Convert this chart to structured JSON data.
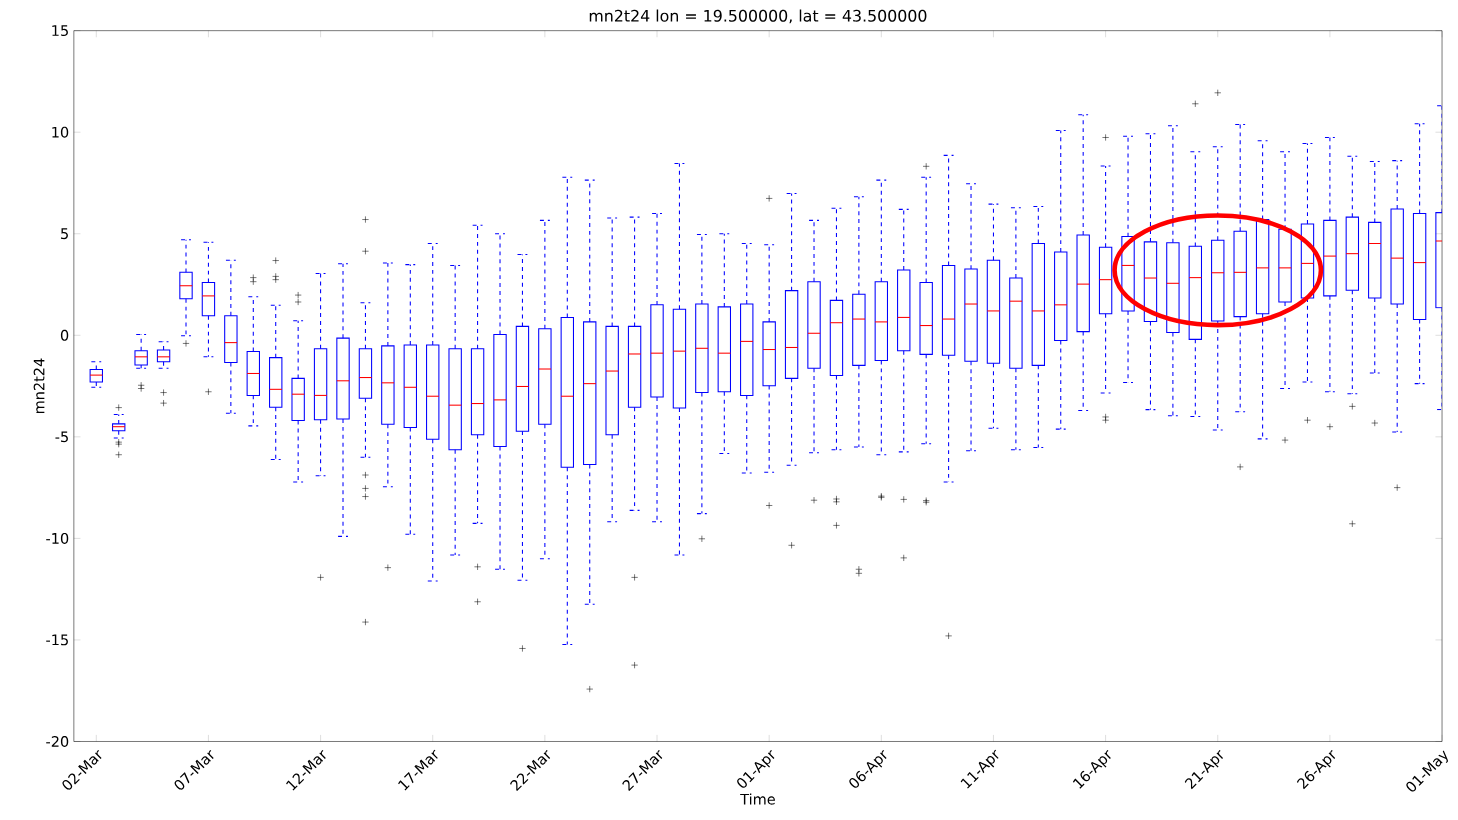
{
  "chart_data": {
    "type": "box",
    "title": "mn2t24 lon = 19.500000, lat = 43.500000",
    "xlabel": "Time",
    "ylabel": "mn2t24",
    "color": "#0000ff",
    "ylim": [
      -20,
      15
    ],
    "yticks": [
      -20,
      -15,
      -10,
      -5,
      0,
      5,
      10,
      15
    ],
    "categories": [
      "02-Mar",
      null,
      null,
      null,
      null,
      "07-Mar",
      null,
      null,
      null,
      null,
      "12-Mar",
      null,
      null,
      null,
      null,
      "17-Mar",
      null,
      null,
      null,
      null,
      "22-Mar",
      null,
      null,
      null,
      null,
      "27-Mar",
      null,
      null,
      null,
      null,
      "01-Apr",
      null,
      null,
      null,
      null,
      "06-Apr",
      null,
      null,
      null,
      null,
      "11-Apr",
      null,
      null,
      null,
      null,
      "16-Apr",
      null,
      null,
      null,
      null,
      "21-Apr",
      null,
      null,
      null,
      null,
      "26-Apr",
      null,
      null,
      null,
      null,
      "01-May"
    ],
    "boxes": [
      {
        "low": -2.56,
        "q1": -2.3,
        "median": -1.96,
        "q3": -1.68,
        "high": -1.3
      },
      {
        "low": -5.06,
        "q1": -4.7,
        "median": -4.5,
        "q3": -4.36,
        "high": -3.9,
        "outliers": [
          -3.56,
          -5.26,
          -5.36,
          -5.88
        ]
      },
      {
        "low": -1.62,
        "q1": -1.46,
        "median": -1.06,
        "q3": -0.76,
        "high": 0.04,
        "outliers": [
          -2.46,
          -2.62
        ]
      },
      {
        "low": -1.62,
        "q1": -1.3,
        "median": -1.06,
        "q3": -0.72,
        "high": -0.32,
        "outliers": [
          -2.82,
          -3.34
        ]
      },
      {
        "low": -0.02,
        "q1": 1.8,
        "median": 2.44,
        "q3": 3.1,
        "high": 4.7,
        "outliers": [
          -0.4
        ]
      },
      {
        "low": -1.06,
        "q1": 0.96,
        "median": 1.94,
        "q3": 2.6,
        "high": 4.58,
        "outliers": [
          -2.78
        ]
      },
      {
        "low": -3.84,
        "q1": -1.34,
        "median": -0.36,
        "q3": 0.96,
        "high": 3.7
      },
      {
        "low": -4.46,
        "q1": -2.96,
        "median": -1.88,
        "q3": -0.8,
        "high": 1.9,
        "outliers": [
          2.84,
          2.64
        ]
      },
      {
        "low": -6.12,
        "q1": -3.54,
        "median": -2.66,
        "q3": -1.1,
        "high": 1.48,
        "outliers": [
          3.68,
          2.9,
          2.74
        ]
      },
      {
        "low": -7.22,
        "q1": -4.2,
        "median": -2.9,
        "q3": -2.12,
        "high": 0.72,
        "outliers": [
          1.98,
          1.64
        ]
      },
      {
        "low": -6.92,
        "q1": -4.16,
        "median": -2.96,
        "q3": -0.66,
        "high": 3.04,
        "outliers": [
          -11.92
        ]
      },
      {
        "low": -9.9,
        "q1": -4.12,
        "median": -2.24,
        "q3": -0.14,
        "high": 3.52
      },
      {
        "low": -6.0,
        "q1": -3.1,
        "median": -2.08,
        "q3": -0.66,
        "high": 1.6,
        "outliers": [
          5.7,
          4.14,
          -6.88,
          -7.54,
          -7.94,
          -14.12
        ]
      },
      {
        "low": -7.46,
        "q1": -4.38,
        "median": -2.34,
        "q3": -0.52,
        "high": 3.56,
        "outliers": [
          -11.44
        ]
      },
      {
        "low": -9.8,
        "q1": -4.54,
        "median": -2.56,
        "q3": -0.48,
        "high": 3.48
      },
      {
        "low": -12.1,
        "q1": -5.12,
        "median": -3.0,
        "q3": -0.48,
        "high": 4.52
      },
      {
        "low": -10.82,
        "q1": -5.64,
        "median": -3.44,
        "q3": -0.66,
        "high": 3.44
      },
      {
        "low": -9.26,
        "q1": -4.9,
        "median": -3.36,
        "q3": -0.66,
        "high": 5.42,
        "outliers": [
          -11.4,
          -13.12
        ]
      },
      {
        "low": -11.52,
        "q1": -5.48,
        "median": -3.18,
        "q3": 0.04,
        "high": 5.0
      },
      {
        "low": -12.06,
        "q1": -4.72,
        "median": -2.52,
        "q3": 0.44,
        "high": 3.98,
        "outliers": [
          -15.42
        ]
      },
      {
        "low": -11.0,
        "q1": -4.38,
        "median": -1.66,
        "q3": 0.32,
        "high": 5.66
      },
      {
        "low": -15.22,
        "q1": -6.5,
        "median": -3.0,
        "q3": 0.88,
        "high": 7.78
      },
      {
        "low": -13.24,
        "q1": -6.36,
        "median": -2.38,
        "q3": 0.66,
        "high": 7.64,
        "outliers": [
          -17.42
        ]
      },
      {
        "low": -9.18,
        "q1": -4.9,
        "median": -1.76,
        "q3": 0.44,
        "high": 5.78
      },
      {
        "low": -8.62,
        "q1": -3.54,
        "median": -0.92,
        "q3": 0.44,
        "high": 5.82,
        "outliers": [
          -11.92,
          -16.24
        ]
      },
      {
        "low": -9.18,
        "q1": -3.04,
        "median": -0.88,
        "q3": 1.5,
        "high": 6.0
      },
      {
        "low": -10.82,
        "q1": -3.58,
        "median": -0.78,
        "q3": 1.28,
        "high": 8.46
      },
      {
        "low": -8.78,
        "q1": -2.82,
        "median": -0.64,
        "q3": 1.54,
        "high": 4.96,
        "outliers": [
          -10.02
        ]
      },
      {
        "low": -5.82,
        "q1": -2.78,
        "median": -0.88,
        "q3": 1.4,
        "high": 5.0
      },
      {
        "low": -6.78,
        "q1": -2.96,
        "median": -0.3,
        "q3": 1.54,
        "high": 4.52
      },
      {
        "low": -6.74,
        "q1": -2.48,
        "median": -0.7,
        "q3": 0.66,
        "high": 4.46,
        "outliers": [
          6.74,
          -8.38
        ]
      },
      {
        "low": -6.4,
        "q1": -2.12,
        "median": -0.6,
        "q3": 2.2,
        "high": 6.98,
        "outliers": [
          -10.34
        ]
      },
      {
        "low": -5.78,
        "q1": -1.62,
        "median": 0.1,
        "q3": 2.64,
        "high": 5.66,
        "outliers": [
          -8.12
        ]
      },
      {
        "low": -5.64,
        "q1": -1.98,
        "median": 0.62,
        "q3": 1.72,
        "high": 6.26,
        "outliers": [
          -8.06,
          -8.2,
          -9.36
        ]
      },
      {
        "low": -5.5,
        "q1": -1.48,
        "median": 0.8,
        "q3": 2.02,
        "high": 6.82,
        "outliers": [
          -11.52,
          -11.72
        ]
      },
      {
        "low": -5.88,
        "q1": -1.24,
        "median": 0.66,
        "q3": 2.64,
        "high": 7.64,
        "outliers": [
          -7.92,
          -7.98
        ]
      },
      {
        "low": -5.74,
        "q1": -0.76,
        "median": 0.88,
        "q3": 3.22,
        "high": 6.2,
        "outliers": [
          -8.08,
          -10.96
        ]
      },
      {
        "low": -5.34,
        "q1": -0.94,
        "median": 0.48,
        "q3": 2.6,
        "high": 7.78,
        "outliers": [
          8.32,
          -8.14,
          -8.22
        ]
      },
      {
        "low": -7.22,
        "q1": -0.98,
        "median": 0.8,
        "q3": 3.44,
        "high": 8.86,
        "outliers": [
          -14.8
        ]
      },
      {
        "low": -5.68,
        "q1": -1.28,
        "median": 1.54,
        "q3": 3.26,
        "high": 7.46
      },
      {
        "low": -4.58,
        "q1": -1.38,
        "median": 1.2,
        "q3": 3.7,
        "high": 6.46
      },
      {
        "low": -5.64,
        "q1": -1.62,
        "median": 1.68,
        "q3": 2.82,
        "high": 6.28
      },
      {
        "low": -5.52,
        "q1": -1.48,
        "median": 1.2,
        "q3": 4.52,
        "high": 6.34
      },
      {
        "low": -4.62,
        "q1": -0.26,
        "median": 1.5,
        "q3": 4.1,
        "high": 10.08
      },
      {
        "low": -3.7,
        "q1": 0.18,
        "median": 2.52,
        "q3": 4.94,
        "high": 10.86
      },
      {
        "low": -2.84,
        "q1": 1.06,
        "median": 2.74,
        "q3": 4.34,
        "high": 8.34,
        "outliers": [
          9.74,
          -4.02,
          -4.18
        ]
      },
      {
        "low": -2.32,
        "q1": 1.2,
        "median": 3.44,
        "q3": 4.86,
        "high": 9.8
      },
      {
        "low": -3.66,
        "q1": 0.68,
        "median": 2.82,
        "q3": 4.6,
        "high": 9.92
      },
      {
        "low": -3.96,
        "q1": 0.14,
        "median": 2.56,
        "q3": 4.56,
        "high": 10.32
      },
      {
        "low": -4.0,
        "q1": -0.2,
        "median": 2.84,
        "q3": 4.38,
        "high": 9.04,
        "outliers": [
          11.4
        ]
      },
      {
        "low": -4.66,
        "q1": 0.7,
        "median": 3.08,
        "q3": 4.68,
        "high": 9.28,
        "outliers": [
          11.94
        ]
      },
      {
        "low": -3.76,
        "q1": 0.92,
        "median": 3.1,
        "q3": 5.12,
        "high": 10.38,
        "outliers": [
          -6.48
        ]
      },
      {
        "low": -5.1,
        "q1": 1.06,
        "median": 3.32,
        "q3": 5.7,
        "high": 9.58
      },
      {
        "low": -2.62,
        "q1": 1.64,
        "median": 3.32,
        "q3": 5.22,
        "high": 9.04,
        "outliers": [
          -5.16
        ]
      },
      {
        "low": -2.3,
        "q1": 1.84,
        "median": 3.54,
        "q3": 5.48,
        "high": 9.44,
        "outliers": [
          -4.18
        ]
      },
      {
        "low": -2.78,
        "q1": 1.94,
        "median": 3.9,
        "q3": 5.66,
        "high": 9.74,
        "outliers": [
          -4.5
        ]
      },
      {
        "low": -2.88,
        "q1": 2.22,
        "median": 4.02,
        "q3": 5.82,
        "high": 8.82,
        "outliers": [
          -3.5,
          -9.28
        ]
      },
      {
        "low": -1.86,
        "q1": 1.84,
        "median": 4.52,
        "q3": 5.56,
        "high": 8.56,
        "outliers": [
          -4.32
        ]
      },
      {
        "low": -4.76,
        "q1": 1.54,
        "median": 3.8,
        "q3": 6.22,
        "high": 8.6,
        "outliers": [
          -7.5
        ]
      },
      {
        "low": -2.38,
        "q1": 0.78,
        "median": 3.58,
        "q3": 6.0,
        "high": 10.42
      },
      {
        "low": -3.66,
        "q1": 1.36,
        "median": 4.64,
        "q3": 6.04,
        "high": 11.3
      }
    ]
  }
}
